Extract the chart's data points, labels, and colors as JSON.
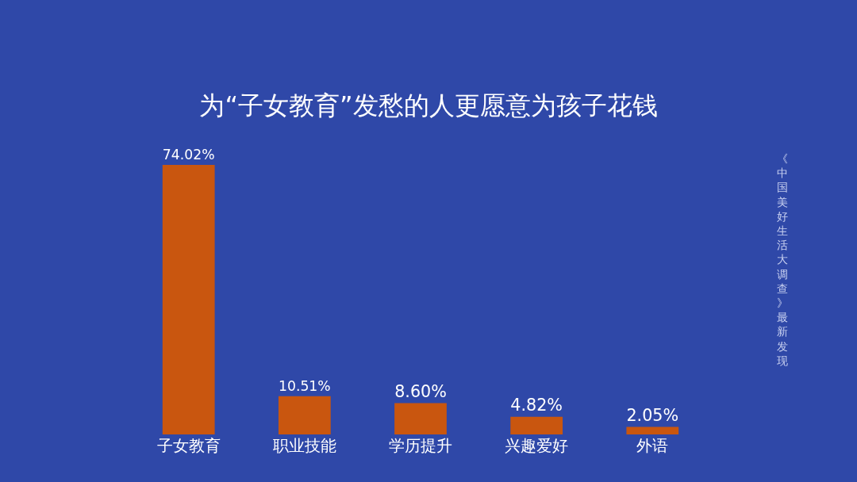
{
  "chart_data": {
    "type": "bar",
    "title": "为“子女教育”发愁的人更愿意为孩子花钱",
    "categories": [
      "子女教育",
      "职业技能",
      "学历提升",
      "兴趣爱好",
      "外语"
    ],
    "values": [
      74.02,
      10.51,
      8.6,
      4.82,
      2.05
    ],
    "value_labels": [
      "74.02%",
      "10.51%",
      "8.60%",
      "4.82%",
      "2.05%"
    ],
    "color": "#c9560f",
    "annotations": [
      "《中国美好生活大调查》最新发现"
    ],
    "grid": false,
    "legend": false
  }
}
